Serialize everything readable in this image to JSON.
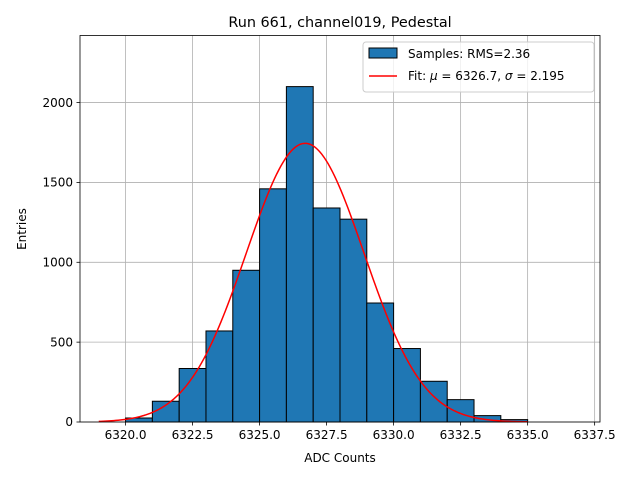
{
  "chart_data": {
    "type": "bar",
    "title": "Run 661, channel019, Pedestal",
    "xlabel": "ADC Counts",
    "ylabel": "Entries",
    "xlim": [
      6318.3,
      6337.7
    ],
    "ylim": [
      0,
      2420
    ],
    "grid": true,
    "legend_position": "top-right",
    "x_ticks": [
      6320.0,
      6322.5,
      6325.0,
      6327.5,
      6330.0,
      6332.5,
      6335.0,
      6337.5
    ],
    "x_tick_labels": [
      "6320.0",
      "6322.5",
      "6325.0",
      "6327.5",
      "6330.0",
      "6332.5",
      "6335.0",
      "6337.5"
    ],
    "y_ticks": [
      0,
      500,
      1000,
      1500,
      2000
    ],
    "y_tick_labels": [
      "0",
      "500",
      "1000",
      "1500",
      "2000"
    ],
    "histogram": {
      "name": "Samples: RMS=2.36",
      "color": "#1f77b4",
      "edge_color": "#000000",
      "bins": [
        {
          "start": 6320.0,
          "end": 6321.0,
          "count": 25
        },
        {
          "start": 6321.0,
          "end": 6322.0,
          "count": 130
        },
        {
          "start": 6322.0,
          "end": 6323.0,
          "count": 335
        },
        {
          "start": 6323.0,
          "end": 6324.0,
          "count": 570
        },
        {
          "start": 6324.0,
          "end": 6325.0,
          "count": 950
        },
        {
          "start": 6325.0,
          "end": 6326.0,
          "count": 1460
        },
        {
          "start": 6326.0,
          "end": 6327.0,
          "count": 2100
        },
        {
          "start": 6327.0,
          "end": 6328.0,
          "count": 1340
        },
        {
          "start": 6328.0,
          "end": 6329.0,
          "count": 1270
        },
        {
          "start": 6329.0,
          "end": 6330.0,
          "count": 745
        },
        {
          "start": 6330.0,
          "end": 6331.0,
          "count": 460
        },
        {
          "start": 6331.0,
          "end": 6332.0,
          "count": 255
        },
        {
          "start": 6332.0,
          "end": 6333.0,
          "count": 140
        },
        {
          "start": 6333.0,
          "end": 6334.0,
          "count": 40
        },
        {
          "start": 6334.0,
          "end": 6335.0,
          "count": 15
        }
      ]
    },
    "fit": {
      "name": "Fit: μ = 6326.7, σ = 2.195",
      "label_prefix": "Fit: ",
      "mu_symbol": "μ",
      "mu_value": "6326.7",
      "sigma_symbol": "σ",
      "sigma_value": "2.195",
      "mu": 6326.7,
      "sigma": 2.195,
      "amplitude": 1745,
      "x_range": [
        6319.0,
        6335.0
      ],
      "color": "#ff0000"
    },
    "grid_color": "#b0b0b0"
  }
}
